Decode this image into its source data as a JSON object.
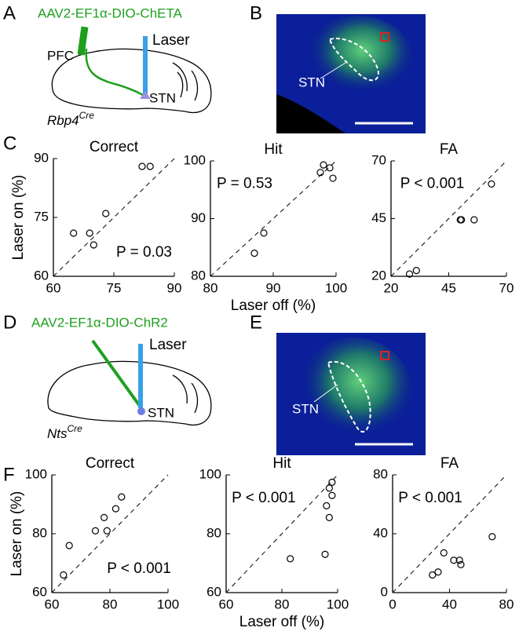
{
  "figure": {
    "panels": [
      "A",
      "B",
      "C",
      "D",
      "E",
      "F"
    ],
    "a": {
      "virus": "AAV2-EF1α-DIO-ChETA",
      "laser": "Laser",
      "region": "PFC",
      "target": "STN",
      "line": "Rbp4",
      "line_sup": "Cre"
    },
    "b": {
      "target": "STN"
    },
    "d": {
      "virus": "AAV2-EF1α-DIO-ChR2",
      "laser": "Laser",
      "target": "STN",
      "line": "Nts",
      "line_sup": "Cre"
    },
    "e": {
      "target": "STN"
    }
  },
  "chart_data": [
    {
      "type": "scatter",
      "title": "Correct",
      "ylabel": "Laser on (%)",
      "annotation": "P = 0.03",
      "x": [
        65,
        69,
        70,
        73,
        82,
        84
      ],
      "values": [
        71,
        71,
        68,
        76,
        88,
        88
      ],
      "xlim": [
        60,
        90
      ],
      "ylim": [
        60,
        90
      ],
      "xticks": [
        60,
        75,
        90
      ],
      "yticks": [
        60,
        75,
        90
      ],
      "color": "#000000"
    },
    {
      "type": "scatter",
      "title": "Hit",
      "xlabel": "Laser off (%)",
      "annotation": "P = 0.53",
      "x": [
        87,
        88.5,
        97.5,
        98,
        99,
        99.5
      ],
      "values": [
        84,
        87.5,
        98,
        99.3,
        98.8,
        97
      ],
      "xlim": [
        80,
        100
      ],
      "ylim": [
        80,
        100
      ],
      "xticks": [
        80,
        90,
        100
      ],
      "yticks": [
        80,
        90,
        100
      ],
      "color": "#000000"
    },
    {
      "type": "scatter",
      "title": "FA",
      "annotation": "P < 0.001",
      "x": [
        28,
        31,
        50,
        50.5,
        56,
        63.5
      ],
      "values": [
        21,
        22.5,
        44.5,
        44.5,
        44.5,
        60
      ],
      "xlim": [
        20,
        70
      ],
      "ylim": [
        20,
        70
      ],
      "xticks": [
        20,
        45,
        70
      ],
      "yticks": [
        20,
        45,
        70
      ],
      "color": "#000000"
    },
    {
      "type": "scatter",
      "title": "Correct",
      "ylabel": "Laser on (%)",
      "annotation": "P < 0.001",
      "x": [
        64,
        66,
        75,
        79,
        78,
        82,
        84
      ],
      "values": [
        66,
        76,
        81,
        81,
        85.5,
        88.5,
        92.5
      ],
      "xlim": [
        60,
        100
      ],
      "ylim": [
        60,
        100
      ],
      "xticks": [
        60,
        80,
        100
      ],
      "yticks": [
        60,
        80,
        100
      ],
      "color": "#000000"
    },
    {
      "type": "scatter",
      "title": "Hit",
      "xlabel": "Laser off (%)",
      "annotation": "P < 0.001",
      "x": [
        83,
        95.5,
        96,
        97,
        97,
        98,
        98
      ],
      "values": [
        71.5,
        73,
        89.5,
        85.5,
        95.5,
        93,
        97.5
      ],
      "xlim": [
        60,
        100
      ],
      "ylim": [
        60,
        100
      ],
      "xticks": [
        60,
        80,
        100
      ],
      "yticks": [
        60,
        80,
        100
      ],
      "color": "#000000"
    },
    {
      "type": "scatter",
      "title": "FA",
      "annotation": "P < 0.001",
      "x": [
        28,
        32,
        36,
        43,
        47,
        48,
        70
      ],
      "values": [
        12,
        14,
        27,
        22,
        22,
        19,
        38
      ],
      "xlim": [
        0,
        80
      ],
      "ylim": [
        0,
        80
      ],
      "xticks": [
        0,
        40,
        80
      ],
      "yticks": [
        0,
        40,
        80
      ],
      "color": "#000000"
    }
  ]
}
